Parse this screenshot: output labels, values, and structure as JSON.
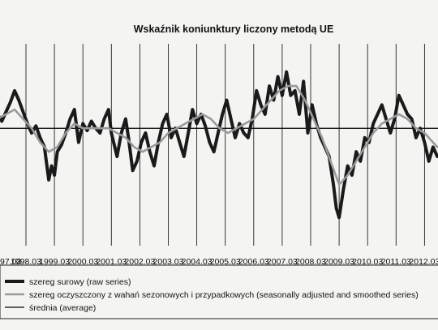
{
  "chart_data": {
    "type": "line",
    "title": "Wskaźnik koniunktury liczony metodą UE",
    "xlabel": "",
    "ylabel": "",
    "x_ticks": [
      "97.03",
      "1998.03",
      "1999.03",
      "2000.03",
      "2001.03",
      "2002.03",
      "2003.03",
      "2004.03",
      "2005.03",
      "2006.03",
      "2007.03",
      "2008.03",
      "2009.03",
      "2010.03",
      "2011.03",
      "2012.03"
    ],
    "grid": "vertical",
    "legend_position": "bottom",
    "y_range": [
      -25,
      18
    ],
    "x_start": 1997.2,
    "average": 0,
    "series": [
      {
        "name": "szereg surowy (raw series)",
        "color": "#1a1a1a",
        "x": [
          1997.2,
          1997.35,
          1997.5,
          1997.65,
          1997.8,
          1997.95,
          1998.1,
          1998.25,
          1998.4,
          1998.55,
          1998.7,
          1998.85,
          1999.0,
          1999.1,
          1999.2,
          1999.3,
          1999.45,
          1999.6,
          1999.75,
          1999.9,
          2000.05,
          2000.2,
          2000.35,
          2000.5,
          2000.65,
          2000.8,
          2000.95,
          2001.1,
          2001.2,
          2001.3,
          2001.4,
          2001.55,
          2001.7,
          2001.8,
          2001.95,
          2002.1,
          2002.25,
          2002.4,
          2002.55,
          2002.7,
          2002.85,
          2003.0,
          2003.15,
          2003.3,
          2003.45,
          2003.6,
          2003.75,
          2003.9,
          2004.05,
          2004.2,
          2004.35,
          2004.5,
          2004.65,
          2004.8,
          2004.95,
          2005.1,
          2005.25,
          2005.4,
          2005.55,
          2005.7,
          2005.85,
          2006.0,
          2006.15,
          2006.3,
          2006.45,
          2006.6,
          2006.75,
          2006.9,
          2007.05,
          2007.2,
          2007.35,
          2007.5,
          2007.65,
          2007.8,
          2007.95,
          2008.1,
          2008.25,
          2008.4,
          2008.55,
          2008.7,
          2008.85,
          2009.0,
          2009.1,
          2009.2,
          2009.35,
          2009.5,
          2009.65,
          2009.8,
          2009.95,
          2010.1,
          2010.25,
          2010.4,
          2010.55,
          2010.7,
          2010.85,
          2011.0,
          2011.15,
          2011.3,
          2011.45,
          2011.6,
          2011.75,
          2011.9,
          2012.05,
          2012.2,
          2012.35,
          2012.5,
          2012.65
        ],
        "values": [
          3,
          1.5,
          3.5,
          5.5,
          8,
          6,
          3.5,
          1,
          -1,
          0.5,
          -2,
          -4,
          -11,
          -8,
          -10,
          -5,
          -3.5,
          -1,
          2,
          4,
          -3,
          1,
          -0.5,
          1.5,
          0,
          -1,
          2,
          4,
          -1,
          -3.5,
          -6,
          -1,
          2,
          -2,
          -9,
          -7,
          -3,
          -1,
          -5,
          -8,
          -3,
          1,
          3,
          -2,
          0,
          -3,
          -6,
          -1,
          4,
          1,
          3,
          0.5,
          -3,
          -5,
          -1,
          3,
          6,
          2,
          -2,
          1,
          -1,
          -2,
          2,
          8,
          5,
          3,
          9,
          6,
          11,
          7,
          12,
          7,
          8,
          3,
          10,
          -1,
          5,
          1,
          -2,
          -4,
          -6,
          -12,
          -17,
          -19,
          -13,
          -8,
          -10,
          -5,
          -7,
          -2,
          -3,
          1,
          3,
          5,
          2,
          -1,
          2,
          7,
          5,
          3,
          2,
          -2,
          0,
          -3,
          -7,
          -4,
          -6
        ]
      },
      {
        "name": "szereg oczyszczony z wahań sezonowych i przypadkowych (seasonally adjusted and smoothed series)",
        "color": "#9a9a9a",
        "x": [
          1997.2,
          1997.5,
          1997.8,
          1998.1,
          1998.4,
          1998.7,
          1999.0,
          1999.3,
          1999.6,
          1999.9,
          2000.2,
          2000.5,
          2000.8,
          2001.1,
          2001.4,
          2001.7,
          2002.0,
          2002.3,
          2002.6,
          2002.9,
          2003.2,
          2003.5,
          2003.8,
          2004.1,
          2004.4,
          2004.7,
          2005.0,
          2005.3,
          2005.6,
          2005.9,
          2006.2,
          2006.5,
          2006.8,
          2007.1,
          2007.4,
          2007.7,
          2008.0,
          2008.3,
          2008.6,
          2008.9,
          2009.2,
          2009.5,
          2009.8,
          2010.1,
          2010.4,
          2010.7,
          2011.0,
          2011.3,
          2011.6,
          2011.9,
          2012.2,
          2012.5,
          2012.65
        ],
        "values": [
          2,
          3,
          4,
          2,
          0,
          -3,
          -5,
          -4,
          -1,
          1,
          0,
          0,
          0,
          0,
          -1,
          -2,
          -4,
          -5,
          -4,
          -3,
          -1,
          0,
          1,
          2,
          3,
          2,
          0,
          -1,
          0,
          1,
          2,
          4,
          6,
          8,
          9,
          9,
          6,
          2,
          -2,
          -7,
          -12,
          -10,
          -7,
          -4,
          -1,
          1,
          2,
          3,
          2,
          0,
          -1,
          -3,
          -4
        ]
      },
      {
        "name": "średnia (average)",
        "color": "#000000"
      }
    ]
  }
}
